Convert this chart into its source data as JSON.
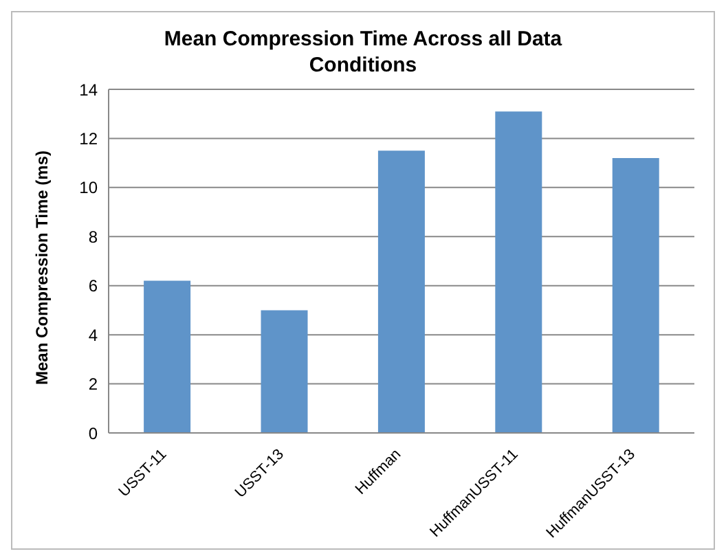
{
  "chart_data": {
    "type": "bar",
    "title": "Mean Compression Time Across all Data Conditions",
    "ylabel": "Mean Compression Time (ms)",
    "categories": [
      "USST-11",
      "USST-13",
      "Huffman",
      "HuffmanUSST-11",
      "HuffmanUSST-13"
    ],
    "values": [
      6.2,
      5.0,
      11.5,
      13.1,
      11.2
    ],
    "color": "#5f94c9",
    "ylim": [
      0,
      14
    ],
    "yticks": [
      0,
      2,
      4,
      6,
      8,
      10,
      12,
      14
    ],
    "grid": "y"
  }
}
